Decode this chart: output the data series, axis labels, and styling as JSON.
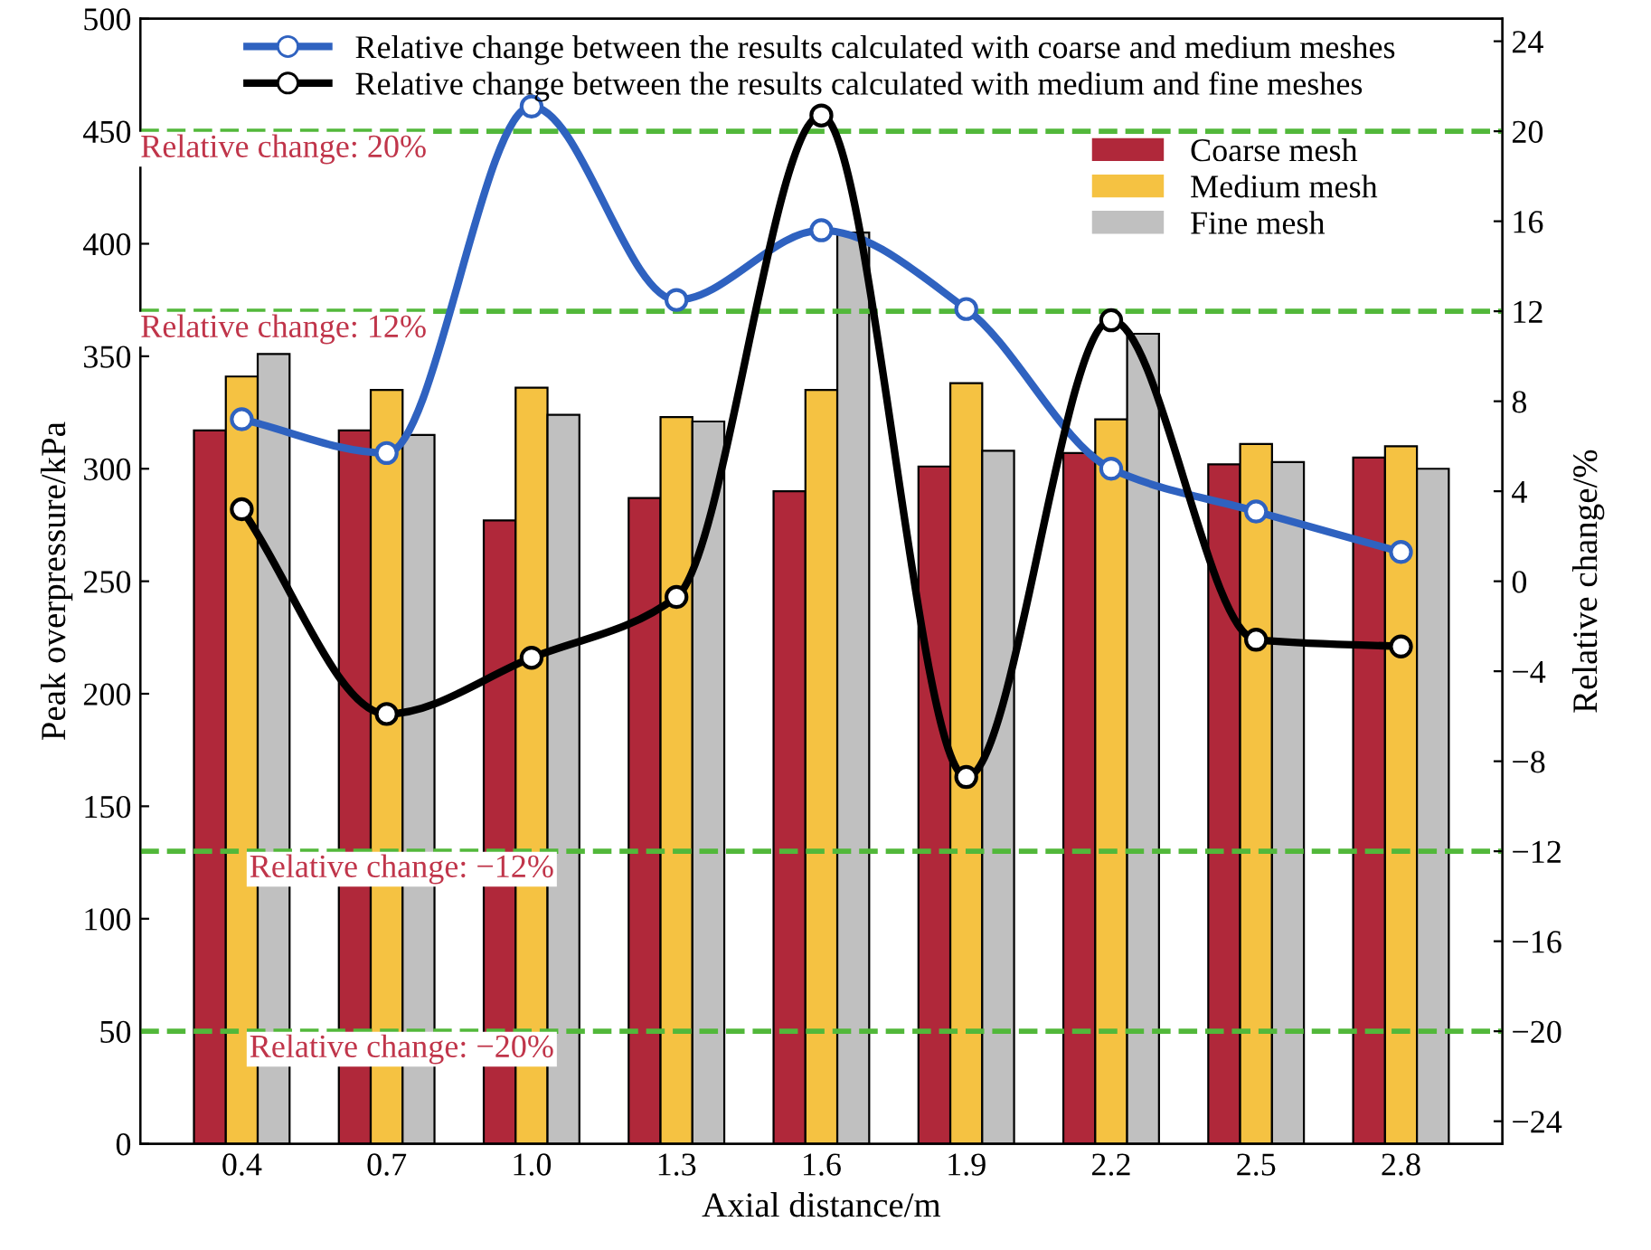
{
  "chart_data": {
    "type": "bar",
    "xlabel": "Axial distance/m",
    "ylabel": "Peak overpressure/kPa",
    "y2label": "Relative change/%",
    "categories": [
      "0.4",
      "0.7",
      "1.0",
      "1.3",
      "1.6",
      "1.9",
      "2.2",
      "2.5",
      "2.8"
    ],
    "series": [
      {
        "name": "Coarse mesh",
        "color": "#b0283a",
        "values": [
          317,
          317,
          277,
          287,
          290,
          301,
          307,
          302,
          305
        ]
      },
      {
        "name": "Medium mesh",
        "color": "#f5c242",
        "values": [
          341,
          335,
          336,
          323,
          335,
          338,
          322,
          311,
          310
        ]
      },
      {
        "name": "Fine mesh",
        "color": "#c0c0c0",
        "values": [
          351,
          315,
          324,
          321,
          405,
          308,
          360,
          303,
          300
        ]
      },
      {
        "name": "Relative change between the results calculated with coarse and medium meshes",
        "type": "line",
        "axis": "y2",
        "color": "#2f62c0",
        "values": [
          7.2,
          5.7,
          21.1,
          12.5,
          15.6,
          12.1,
          5.0,
          3.1,
          1.3
        ]
      },
      {
        "name": "Relative change between the results calculated with medium and fine meshes",
        "type": "line",
        "axis": "y2",
        "color": "#000000",
        "values": [
          3.2,
          -5.9,
          -3.4,
          -0.7,
          20.7,
          -8.7,
          11.6,
          -2.6,
          -2.9
        ]
      }
    ],
    "ylim": [
      0,
      500
    ],
    "yticks": [
      0,
      50,
      100,
      150,
      200,
      250,
      300,
      350,
      400,
      450,
      500
    ],
    "y2lim": [
      -25,
      25
    ],
    "y2ticks": [
      -24,
      -20,
      -16,
      -12,
      -8,
      -4,
      0,
      4,
      8,
      12,
      16,
      20,
      24
    ],
    "ref_lines": [
      {
        "axis": "y2",
        "value": 20,
        "label": "Relative change: 20%",
        "color": "#52b83a",
        "line_style": "dashed"
      },
      {
        "axis": "y2",
        "value": 12,
        "label": "Relative change: 12%",
        "color": "#52b83a",
        "line_style": "dashed"
      },
      {
        "axis": "y2",
        "value": -12,
        "label": "Relative change: −12%",
        "color": "#52b83a",
        "line_style": "dashed"
      },
      {
        "axis": "y2",
        "value": -20,
        "label": "Relative change: −20%",
        "color": "#52b83a",
        "line_style": "dashed"
      }
    ],
    "marker": "circle",
    "legend": "top right",
    "grid": false
  }
}
